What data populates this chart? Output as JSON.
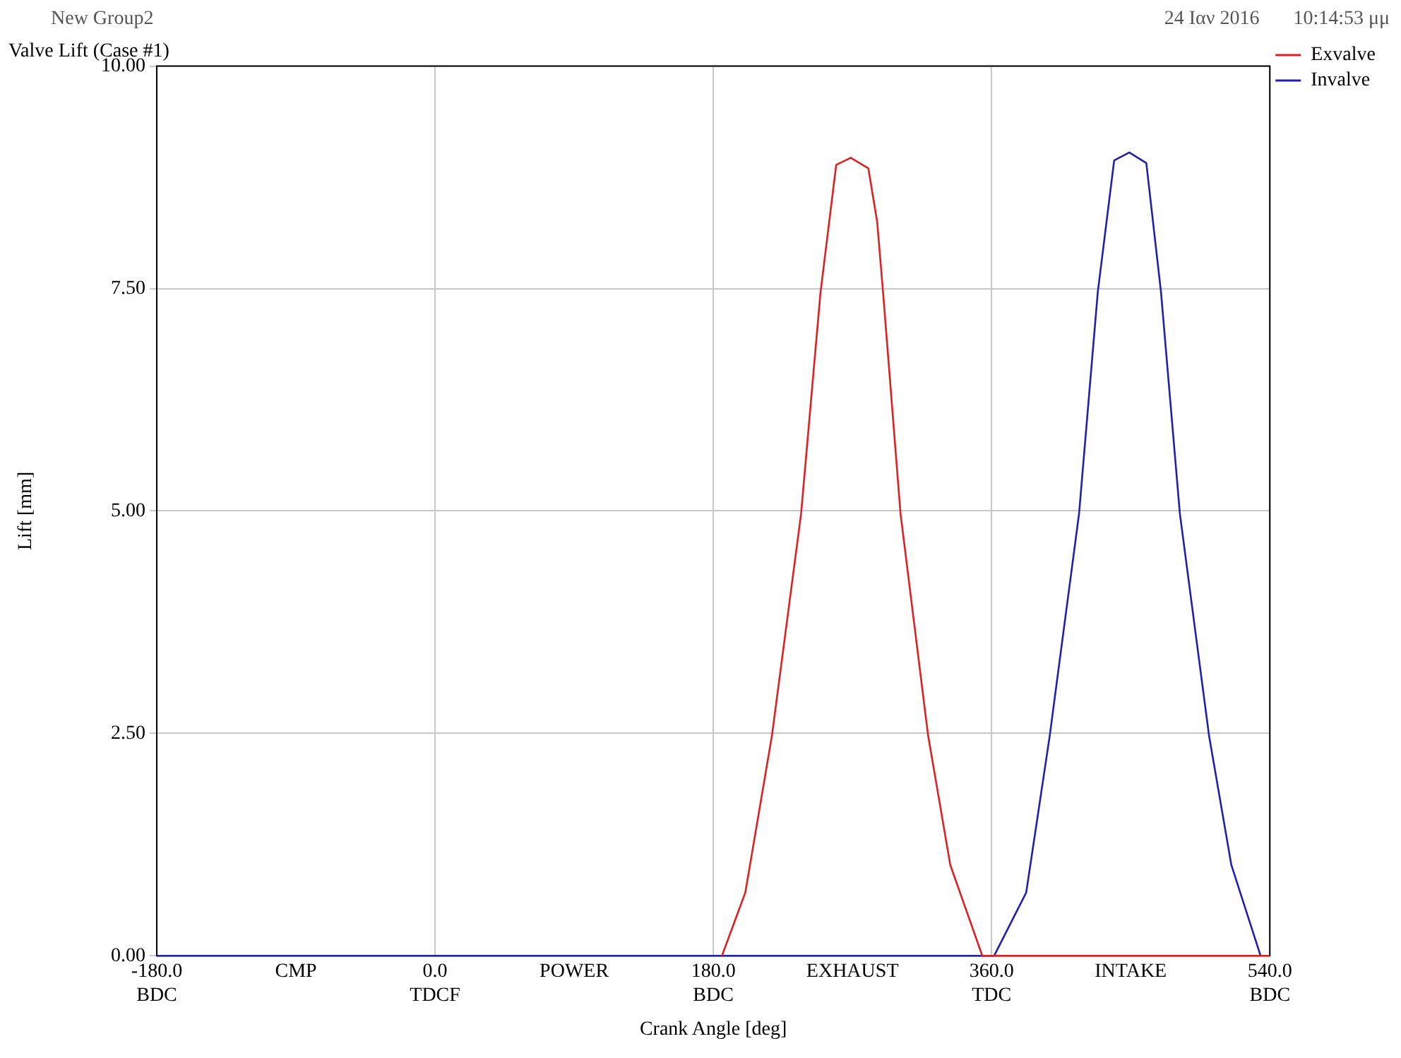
{
  "chart_data": {
    "type": "line",
    "title": "Valve Lift (Case #1)",
    "xlabel": "Crank Angle [deg]",
    "ylabel": "Lift [mm]",
    "annotations": [
      "New Group2",
      "24 Ιαν 2016",
      "10:14:53 μμ"
    ],
    "series": [
      {
        "name": "Exvalve",
        "color": "#e02020",
        "x": [
          185.6,
          200.7,
          217.9,
          236.8,
          249.3,
          259.5,
          268.9,
          280.3,
          286,
          289.8,
          301.1,
          318.9,
          333.3,
          354,
          540
        ],
        "values": [
          0,
          0.71,
          2.47,
          4.97,
          7.45,
          8.89,
          8.97,
          8.85,
          8.25,
          7.46,
          4.97,
          2.48,
          1.02,
          0,
          0
        ]
      },
      {
        "name": "Invalve",
        "color": "#2020b0",
        "x": [
          -180,
          361.7,
          382.4,
          397.6,
          416.6,
          428.7,
          439.3,
          449.1,
          460.1,
          469.6,
          481.8,
          500.7,
          515.1,
          534
        ],
        "values": [
          0,
          0,
          0.71,
          2.47,
          4.97,
          7.46,
          8.94,
          9.03,
          8.91,
          7.46,
          4.97,
          2.47,
          1.02,
          0
        ]
      }
    ],
    "xlim": [
      -180,
      540
    ],
    "xticks": [
      {
        "value": -180,
        "label": "-180.0\nBDC"
      },
      {
        "value": -90,
        "label": "CMP"
      },
      {
        "value": 0,
        "label": "0.0\nTDCF"
      },
      {
        "value": 90,
        "label": "POWER"
      },
      {
        "value": 180,
        "label": "180.0\nBDC"
      },
      {
        "value": 270,
        "label": "EXHAUST"
      },
      {
        "value": 360,
        "label": "360.0\nTDC"
      },
      {
        "value": 450,
        "label": "INTAKE"
      },
      {
        "value": 540,
        "label": "540.0\nBDC"
      }
    ],
    "ylim": [
      0,
      10
    ],
    "yticks": [
      {
        "value": 0,
        "label": "0.00"
      },
      {
        "value": 2.5,
        "label": "2.50"
      },
      {
        "value": 5,
        "label": "5.00"
      },
      {
        "value": 7.5,
        "label": "7.50"
      },
      {
        "value": 10,
        "label": "10.00"
      }
    ],
    "grid": true,
    "legend": "top right",
    "marker": "none",
    "line_style": "solid"
  }
}
